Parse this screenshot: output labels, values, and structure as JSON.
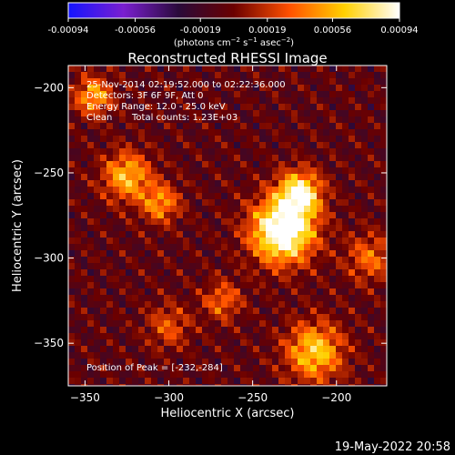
{
  "chart_data": {
    "type": "heatmap",
    "title": "Reconstructed RHESSI Image",
    "xlabel": "Heliocentric X (arcsec)",
    "ylabel": "Heliocentric Y (arcsec)",
    "xlim": [
      -360,
      -170
    ],
    "ylim": [
      -375,
      -187
    ],
    "xticks": [
      -350,
      -300,
      -250,
      -200
    ],
    "yticks": [
      -200,
      -250,
      -300,
      -350
    ],
    "grid": false,
    "colorbar": {
      "ticks": [
        "-0.00094",
        "-0.00056",
        "-0.00019",
        "0.00019",
        "0.00056",
        "0.00094"
      ],
      "units_label": "(photons cm^-2 s^-1 asec^-2)",
      "range": [
        -0.00094,
        0.00094
      ],
      "colors": [
        "#1414ff",
        "#7a1fd0",
        "#2a0a3a",
        "#6b0000",
        "#ff5000",
        "#ffd000",
        "#ffffff"
      ]
    },
    "annotations": {
      "time_range": "25-Nov-2014 02:19:52.000 to 02:22:36.000",
      "detectors": "Detectors: 3F 6F 9F, Att 0",
      "energy_range": "Energy Range: 12.0 - 25.0 keV",
      "clean": "Clean",
      "total_counts": "Total counts: 1.23E+03",
      "peak": "Position of Peak = [-232,-284]"
    },
    "peak": {
      "x": -232,
      "y": -284
    },
    "sources": [
      {
        "x": -232,
        "y": -284,
        "sigma": 13,
        "amp": 1.0
      },
      {
        "x": -222,
        "y": -262,
        "sigma": 9,
        "amp": 0.75
      },
      {
        "x": -325,
        "y": -252,
        "sigma": 10,
        "amp": 0.55
      },
      {
        "x": -305,
        "y": -268,
        "sigma": 8,
        "amp": 0.45
      },
      {
        "x": -213,
        "y": -355,
        "sigma": 12,
        "amp": 0.6
      },
      {
        "x": -345,
        "y": -205,
        "sigma": 8,
        "amp": 0.5
      },
      {
        "x": -268,
        "y": -325,
        "sigma": 8,
        "amp": 0.35
      },
      {
        "x": -180,
        "y": -300,
        "sigma": 10,
        "amp": 0.35
      },
      {
        "x": -300,
        "y": -340,
        "sigma": 9,
        "amp": 0.3
      }
    ]
  },
  "footer": {
    "date": "19-May-2022 20:58"
  }
}
